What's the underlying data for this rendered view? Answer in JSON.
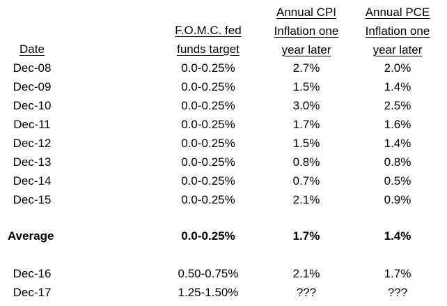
{
  "headers": {
    "date": [
      "Date"
    ],
    "fomc": [
      "F.O.M.C. fed",
      "funds target"
    ],
    "cpi": [
      "Annual CPI",
      "Inflation one",
      "year later"
    ],
    "pce": [
      "Annual PCE",
      "Inflation one",
      "year later"
    ]
  },
  "rows": [
    {
      "date": "Dec-08",
      "fomc": "0.0-0.25%",
      "cpi": "2.7%",
      "pce": "2.0%"
    },
    {
      "date": "Dec-09",
      "fomc": "0.0-0.25%",
      "cpi": "1.5%",
      "pce": "1.4%"
    },
    {
      "date": "Dec-10",
      "fomc": "0.0-0.25%",
      "cpi": "3.0%",
      "pce": "2.5%"
    },
    {
      "date": "Dec-11",
      "fomc": "0.0-0.25%",
      "cpi": "1.7%",
      "pce": "1.6%"
    },
    {
      "date": "Dec-12",
      "fomc": "0.0-0.25%",
      "cpi": "1.5%",
      "pce": "1.4%"
    },
    {
      "date": "Dec-13",
      "fomc": "0.0-0.25%",
      "cpi": "0.8%",
      "pce": "0.8%"
    },
    {
      "date": "Dec-14",
      "fomc": "0.0-0.25%",
      "cpi": "0.7%",
      "pce": "0.5%"
    },
    {
      "date": "Dec-15",
      "fomc": "0.0-0.25%",
      "cpi": "2.1%",
      "pce": "0.9%"
    }
  ],
  "average": {
    "label": "Average",
    "fomc": "0.0-0.25%",
    "cpi": "1.7%",
    "pce": "1.4%"
  },
  "later_rows": [
    {
      "date": "Dec-16",
      "fomc": "0.50-0.75%",
      "cpi": "2.1%",
      "pce": "1.7%"
    },
    {
      "date": "Dec-17",
      "fomc": "1.25-1.50%",
      "cpi": "???",
      "pce": "???"
    }
  ]
}
